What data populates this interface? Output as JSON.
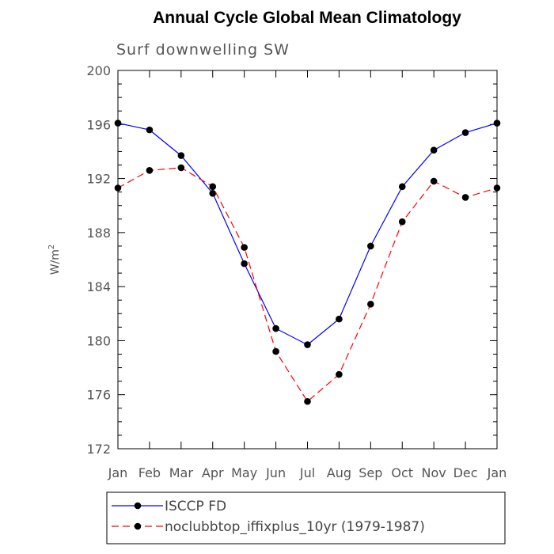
{
  "chart_data": {
    "type": "line",
    "title": "Annual Cycle Global Mean Climatology",
    "subtitle": "Surf downwelling SW",
    "xlabel": "",
    "ylabel": "W/m",
    "ylabel_superscript": "2",
    "categories": [
      "Jan",
      "Feb",
      "Mar",
      "Apr",
      "May",
      "Jun",
      "Jul",
      "Aug",
      "Sep",
      "Oct",
      "Nov",
      "Dec",
      "Jan"
    ],
    "ylim": [
      172,
      200
    ],
    "yticks": [
      "172",
      "176",
      "180",
      "184",
      "188",
      "192",
      "196",
      "200"
    ],
    "grid": false,
    "legend_placement": "bottom",
    "series": [
      {
        "name": "ISCCP FD",
        "color": "#0000ff",
        "dash": "solid",
        "marker": "filled-circle",
        "values": [
          196.1,
          195.6,
          193.7,
          190.9,
          185.7,
          180.9,
          179.7,
          181.6,
          187.0,
          191.4,
          194.1,
          195.4,
          196.1
        ]
      },
      {
        "name": "noclubbtop_iffixplus_10yr (1979-1987)",
        "color": "#ff0000",
        "dash": "dashed",
        "marker": "filled-circle",
        "values": [
          191.3,
          192.6,
          192.8,
          191.4,
          186.9,
          179.2,
          175.5,
          177.5,
          182.7,
          188.8,
          191.8,
          190.6,
          191.3
        ]
      }
    ]
  }
}
